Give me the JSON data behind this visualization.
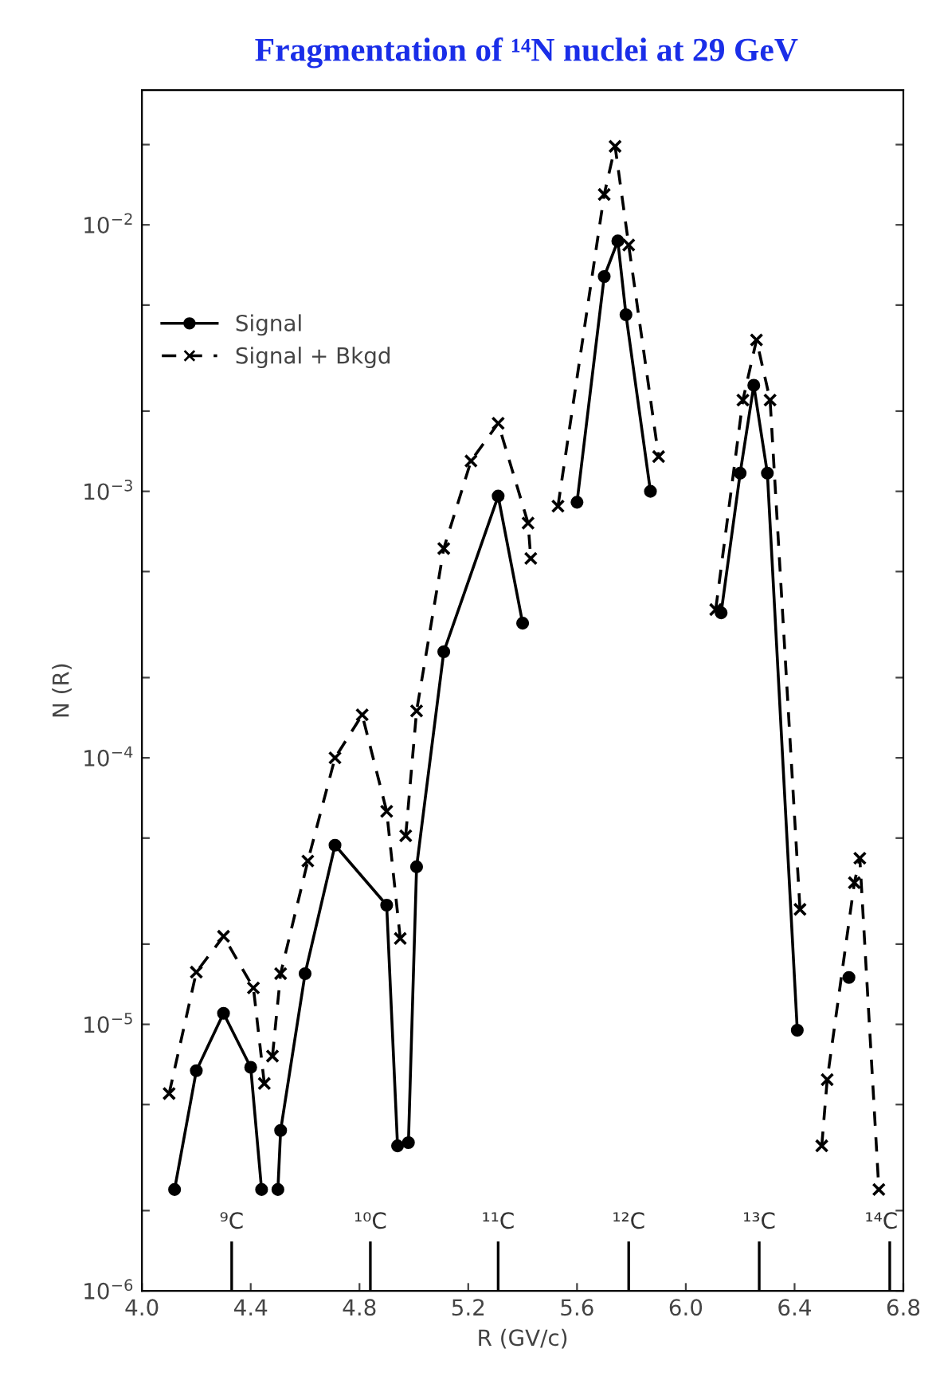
{
  "chart_data": {
    "type": "line",
    "title": "Fragmentation of ¹⁴N nuclei at 29 GeV",
    "xlabel": "R (GV/c)",
    "ylabel": "N (R)",
    "log": "y",
    "xlim": [
      4.0,
      6.8
    ],
    "ylim": [
      1e-06,
      0.032
    ],
    "xticks": [
      {
        "value": 4,
        "label": "4.0"
      },
      4.4,
      4.8,
      5.2,
      5.6,
      {
        "value": 6,
        "label": "6.0"
      },
      6.4,
      6.8
    ],
    "yticks": [
      {
        "value": 1e-06,
        "label": "10$^{−6}$"
      },
      {
        "value": 2e-06,
        "label": null
      },
      {
        "value": 5e-06,
        "label": null
      },
      {
        "value": 1e-05,
        "label": "10$^{−5}$"
      },
      {
        "value": 2e-05,
        "label": null
      },
      {
        "value": 5e-05,
        "label": null
      },
      {
        "value": 0.0001,
        "label": "10$^{−4}$"
      },
      {
        "value": 0.0002,
        "label": null
      },
      {
        "value": 0.0005,
        "label": null
      },
      {
        "value": 0.001,
        "label": "10$^{−3}$"
      },
      {
        "value": 0.002,
        "label": null
      },
      {
        "value": 0.005,
        "label": null
      },
      {
        "value": 0.01,
        "label": "10$^{−2}$"
      },
      {
        "value": 0.02,
        "label": null
      }
    ],
    "grid": false,
    "legend": "top left",
    "series": [
      {
        "name": "Signal",
        "color": "#000000",
        "line_style": "solid",
        "marker": "circle",
        "x": [
          4.12,
          4.2,
          4.3,
          4.4,
          4.44,
          4.47,
          4.5,
          4.51,
          4.6,
          4.71,
          4.9,
          4.94,
          4.96,
          4.98,
          5.01,
          5.11,
          5.31,
          5.4,
          5.5,
          5.6,
          5.7,
          5.75,
          5.78,
          5.87,
          6.0,
          6.13,
          6.2,
          6.25,
          6.3,
          6.41,
          6.5,
          6.6
        ],
        "values": [
          2.4e-06,
          6.7e-06,
          1.1e-05,
          6.9e-06,
          2.4e-06,
          null,
          2.4e-06,
          4e-06,
          1.55e-05,
          4.7e-05,
          2.8e-05,
          3.5e-06,
          null,
          3.6e-06,
          3.9e-05,
          0.00025,
          0.00096,
          0.00032,
          null,
          0.00091,
          0.0064,
          0.0087,
          0.0046,
          0.001,
          null,
          0.00035,
          0.00117,
          0.0025,
          0.00117,
          9.5e-06,
          null,
          1.5e-05
        ]
      },
      {
        "name": "Signal + Bkgd",
        "color": "#000000",
        "line_style": "dashed",
        "marker": "cross",
        "x": [
          4.1,
          4.2,
          4.3,
          4.41,
          4.45,
          4.465,
          4.48,
          4.51,
          4.61,
          4.71,
          4.81,
          4.9,
          4.95,
          4.96,
          4.97,
          5.01,
          5.11,
          5.21,
          5.31,
          5.42,
          5.43,
          5.48,
          5.53,
          5.7,
          5.74,
          5.79,
          5.9,
          6.0,
          6.11,
          6.21,
          6.26,
          6.31,
          6.42,
          6.46,
          6.5,
          6.52,
          6.62,
          6.64,
          6.71
        ],
        "values": [
          5.5e-06,
          1.57e-05,
          2.14e-05,
          1.37e-05,
          6e-06,
          null,
          7.6e-06,
          1.55e-05,
          4.1e-05,
          0.0001,
          0.000145,
          6.3e-05,
          2.1e-05,
          null,
          5.1e-05,
          0.00015,
          0.00061,
          0.0013,
          0.0018,
          0.00076,
          0.00056,
          null,
          0.00088,
          0.013,
          0.0197,
          0.0084,
          0.00135,
          null,
          0.00036,
          0.0022,
          0.0037,
          0.0022,
          2.7e-05,
          null,
          3.5e-06,
          6.2e-06,
          3.4e-05,
          4.2e-05,
          2.4e-06
        ]
      }
    ],
    "ref_lines": [
      {
        "axis": "x",
        "value": 4.33,
        "label": "⁹C"
      },
      {
        "axis": "x",
        "value": 4.84,
        "label": "¹⁰C"
      },
      {
        "axis": "x",
        "value": 5.31,
        "label": "¹¹C"
      },
      {
        "axis": "x",
        "value": 5.79,
        "label": "¹²C"
      },
      {
        "axis": "x",
        "value": 6.27,
        "label": "¹³C"
      },
      {
        "axis": "x",
        "value": 6.75,
        "label": "¹⁴C"
      }
    ]
  }
}
